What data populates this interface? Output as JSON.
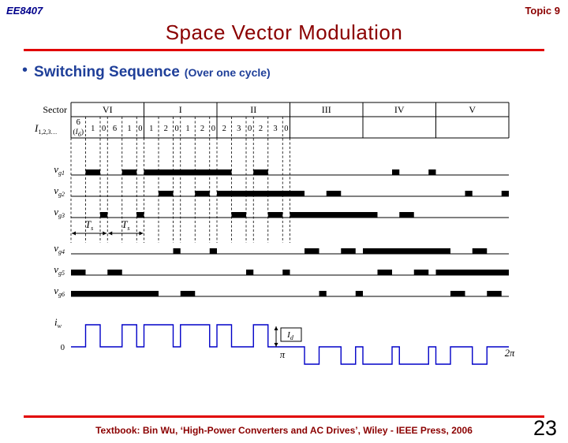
{
  "header": {
    "course_code": "EE8407",
    "topic": "Topic 9",
    "title": "Space Vector Modulation"
  },
  "bullet": {
    "heading": "Switching Sequence",
    "qualifier": "(Over one cycle)"
  },
  "footer": {
    "citation": "Textbook: Bin Wu, ‘High-Power Converters and AC Drives’, Wiley - IEEE Press, 2006",
    "page_number": "23"
  },
  "colors": {
    "dark-red": "#8B0000",
    "rule-red": "#E10000",
    "heading-blue": "#1F3F99",
    "navy-blue": "#00008B",
    "wave-blue": "#0000C8"
  },
  "chart_data": {
    "type": "timing-diagram",
    "description": "Space vector modulation switching sequence of a current-source inverter over one fundamental cycle (0 to 2π)",
    "x_axis": {
      "range_deg": [
        0,
        360
      ],
      "pi_label": "π",
      "two_pi_label": "2π"
    },
    "sector_row": {
      "label": "Sector",
      "sectors": [
        "VI",
        "I",
        "II",
        "III",
        "IV",
        "V"
      ]
    },
    "state_row": {
      "label_main": "I",
      "label_sub": "1,2,3…",
      "segment_degrees": [
        12,
        12,
        6,
        12,
        12,
        6
      ],
      "first_cell": {
        "value": "6",
        "annotation_main": "I",
        "annotation_sub": "6"
      },
      "sequences": {
        "VI": [
          "6",
          "1",
          "0",
          "6",
          "1",
          "0"
        ],
        "I": [
          "1",
          "2",
          "0",
          "1",
          "2",
          "0"
        ],
        "II": [
          "2",
          "3",
          "0",
          "2",
          "3",
          "0"
        ]
      }
    },
    "sampling_period": {
      "label_main": "T",
      "label_sub": "s",
      "spans_deg": [
        [
          0,
          30
        ],
        [
          30,
          60
        ]
      ]
    },
    "gate_signals": [
      {
        "label_main": "v",
        "label_sub": "g1",
        "on_deg": [
          [
            12,
            24
          ],
          [
            42,
            54
          ],
          [
            60,
            132
          ],
          [
            150,
            162
          ],
          [
            264,
            270
          ],
          [
            294,
            300
          ]
        ]
      },
      {
        "label_main": "v",
        "label_sub": "g2",
        "on_deg": [
          [
            72,
            84
          ],
          [
            102,
            114
          ],
          [
            120,
            192
          ],
          [
            210,
            222
          ],
          [
            324,
            330
          ],
          [
            354,
            360
          ]
        ]
      },
      {
        "label_main": "v",
        "label_sub": "g3",
        "on_deg": [
          [
            24,
            30
          ],
          [
            54,
            60
          ],
          [
            132,
            144
          ],
          [
            162,
            174
          ],
          [
            180,
            252
          ],
          [
            270,
            282
          ]
        ]
      },
      {
        "label_main": "v",
        "label_sub": "g4",
        "on_deg": [
          [
            84,
            90
          ],
          [
            114,
            120
          ],
          [
            192,
            204
          ],
          [
            222,
            234
          ],
          [
            240,
            312
          ],
          [
            330,
            342
          ]
        ]
      },
      {
        "label_main": "v",
        "label_sub": "g5",
        "on_deg": [
          [
            0,
            12
          ],
          [
            30,
            42
          ],
          [
            144,
            150
          ],
          [
            174,
            180
          ],
          [
            252,
            264
          ],
          [
            282,
            294
          ],
          [
            300,
            360
          ]
        ]
      },
      {
        "label_main": "v",
        "label_sub": "g6",
        "on_deg": [
          [
            0,
            72
          ],
          [
            90,
            102
          ],
          [
            204,
            210
          ],
          [
            234,
            240
          ],
          [
            312,
            324
          ],
          [
            342,
            354
          ]
        ]
      }
    ],
    "output_current": {
      "label_main": "i",
      "label_sub": "w",
      "zero_label": "0",
      "amplitude_main": "I",
      "amplitude_sub": "d",
      "positive_deg": [
        [
          12,
          24
        ],
        [
          42,
          54
        ],
        [
          60,
          84
        ],
        [
          90,
          114
        ],
        [
          120,
          132
        ],
        [
          150,
          162
        ]
      ],
      "negative_deg": [
        [
          192,
          204
        ],
        [
          222,
          234
        ],
        [
          240,
          264
        ],
        [
          270,
          294
        ],
        [
          300,
          312
        ],
        [
          330,
          342
        ]
      ]
    }
  }
}
